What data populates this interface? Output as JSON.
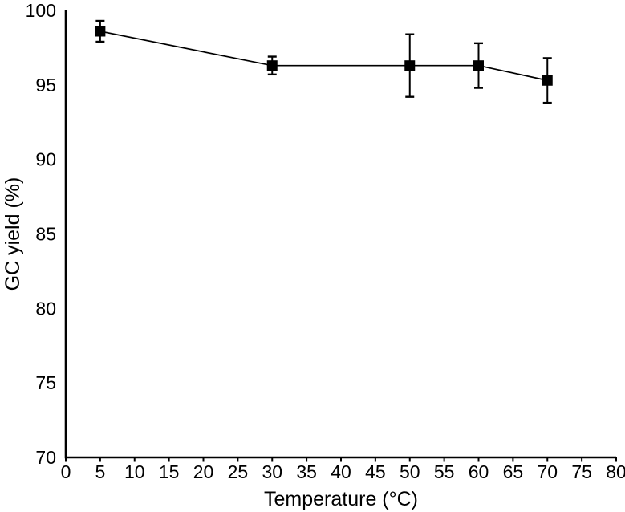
{
  "figure": {
    "background_color": "#ffffff",
    "foreground_color": "#000000"
  },
  "chart_data": {
    "type": "line",
    "title": "",
    "xlabel": "Temperature (°C)",
    "ylabel": "GC yield (%)",
    "xlim": [
      0,
      80
    ],
    "ylim": [
      70,
      100
    ],
    "xticks": [
      0,
      5,
      10,
      15,
      20,
      25,
      30,
      35,
      40,
      45,
      50,
      55,
      60,
      65,
      70,
      75,
      80
    ],
    "yticks": [
      70,
      75,
      80,
      85,
      90,
      95,
      100
    ],
    "grid": false,
    "legend_position": "none",
    "series": [
      {
        "name": "GC yield",
        "marker": "filled-square",
        "line_color": "#000000",
        "marker_color": "#000000",
        "error_bar_color": "#000000",
        "x": [
          5,
          30,
          50,
          60,
          70
        ],
        "y": [
          98.6,
          96.3,
          96.3,
          96.3,
          95.3
        ],
        "yerr": [
          0.7,
          0.6,
          2.1,
          1.5,
          1.5
        ]
      }
    ]
  }
}
